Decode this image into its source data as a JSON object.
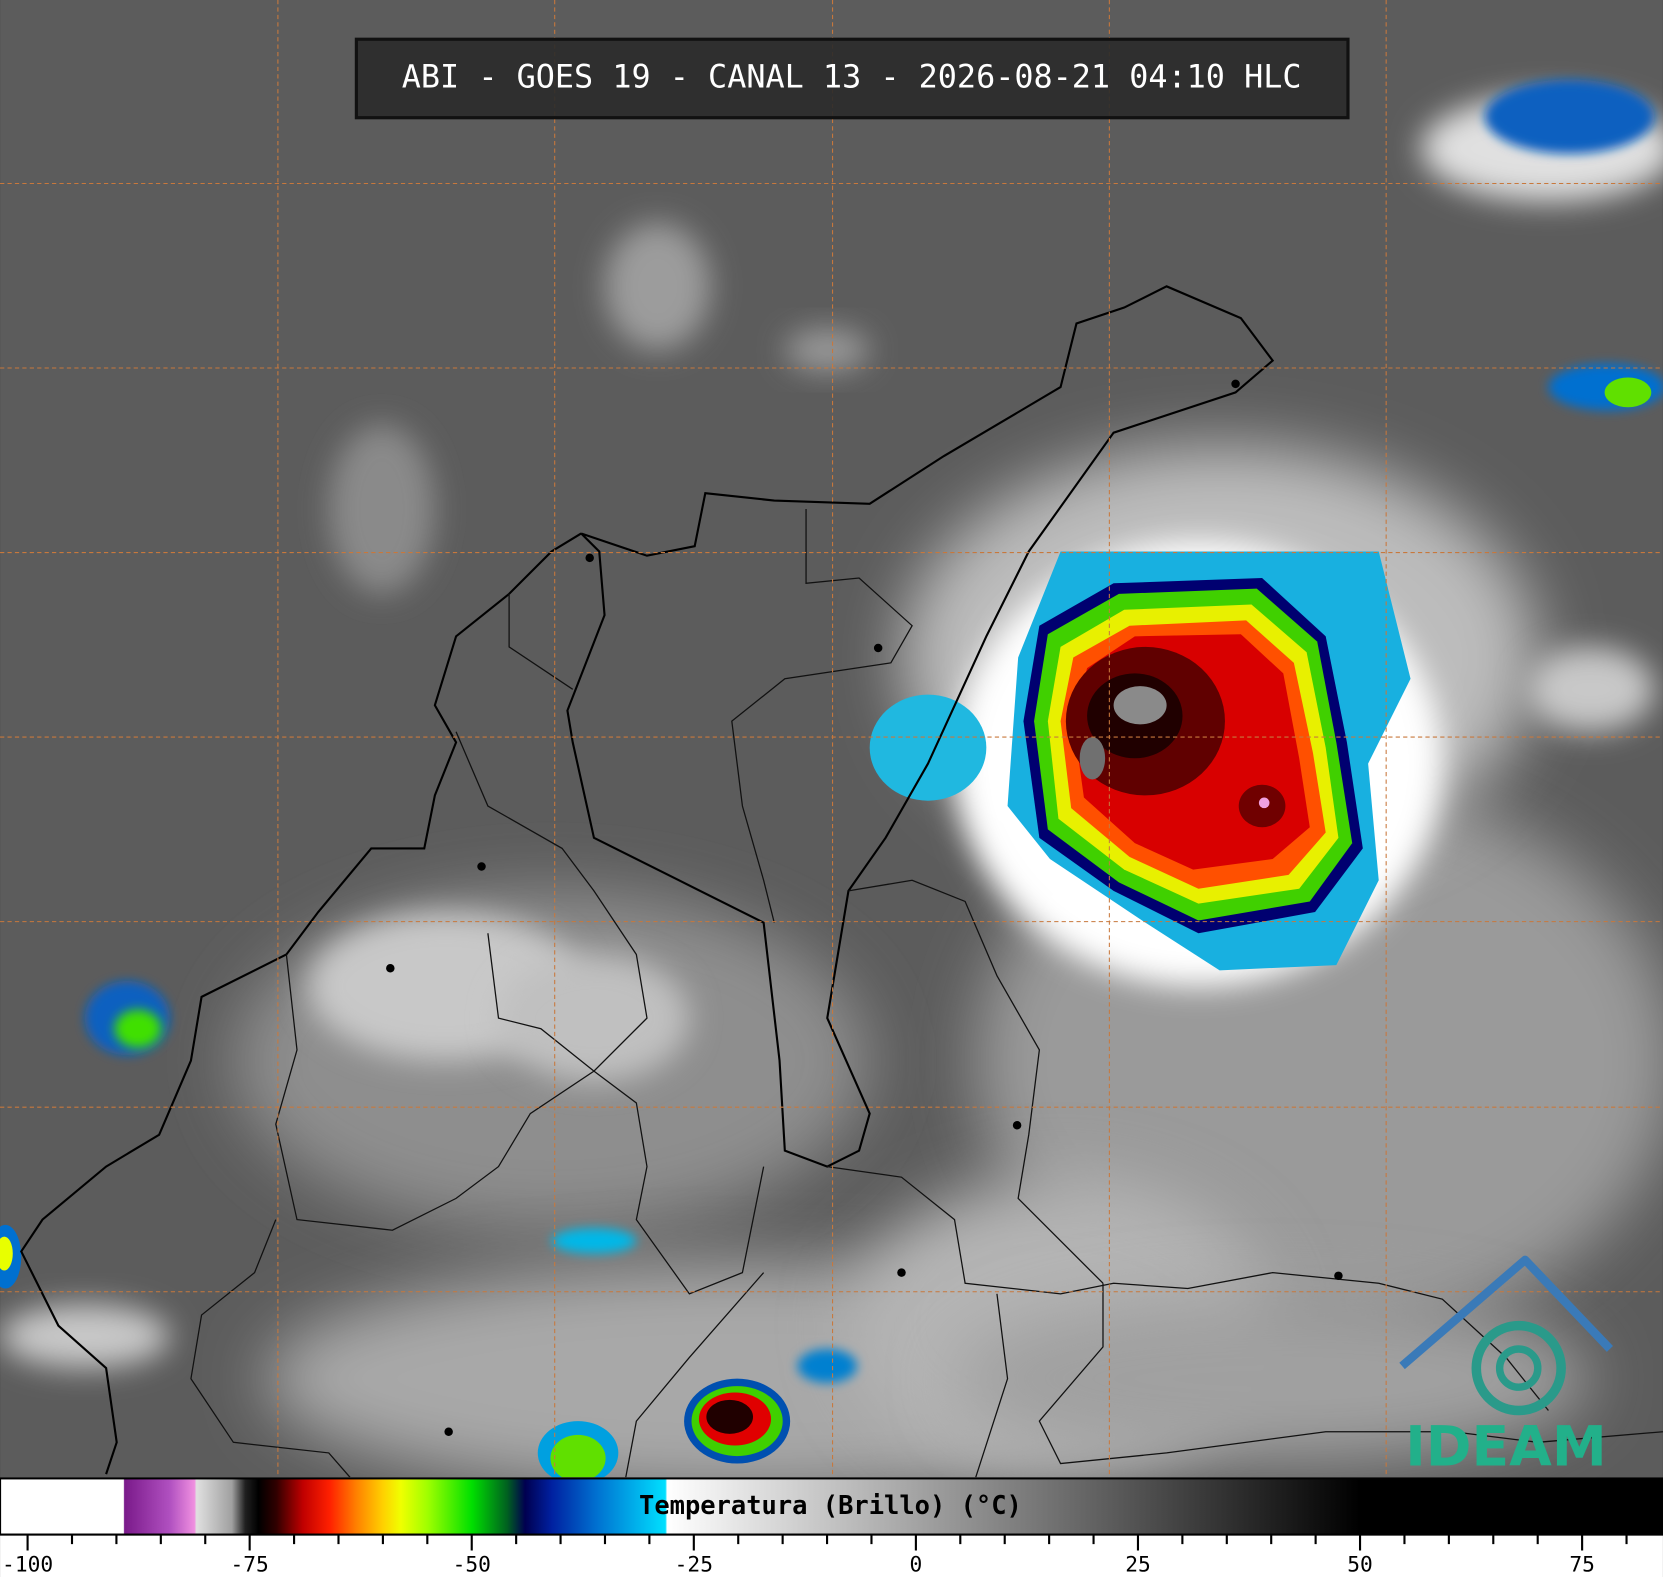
{
  "title": "ABI - GOES 19 - CANAL 13 - 2026-08-21 04:10 HLC",
  "logo": "IDEAM",
  "colorbar": {
    "label": "Temperatura (Brillo) (°C)",
    "xlim": [
      -103.1,
      84.1
    ],
    "ticks": [
      -100,
      -75,
      -50,
      -25,
      0,
      25,
      50,
      75
    ],
    "minor_ticks": [
      -95,
      -90,
      -85,
      -80,
      -70,
      -65,
      -60,
      -55,
      -45,
      -40,
      -35,
      -30,
      -20,
      -15,
      -10,
      -5,
      5,
      10,
      15,
      20,
      30,
      35,
      40,
      45,
      55,
      60,
      65,
      70,
      80
    ],
    "colormap": [
      {
        "value": -103.1,
        "color": "#ffffff"
      },
      {
        "value": -89.2,
        "color": "#ffffff"
      },
      {
        "value": -89.1,
        "color": "#7a1a8a"
      },
      {
        "value": -84,
        "color": "#b050c0"
      },
      {
        "value": -81.2,
        "color": "#f090e0"
      },
      {
        "value": -81,
        "color": "#e0e0e0"
      },
      {
        "value": -77,
        "color": "#a0a0a0"
      },
      {
        "value": -75.5,
        "color": "#202020"
      },
      {
        "value": -74,
        "color": "#000000"
      },
      {
        "value": -72,
        "color": "#300000"
      },
      {
        "value": -69,
        "color": "#c00000"
      },
      {
        "value": -66,
        "color": "#ff2000"
      },
      {
        "value": -63,
        "color": "#ff8000"
      },
      {
        "value": -60,
        "color": "#ffd000"
      },
      {
        "value": -58,
        "color": "#f0ff00"
      },
      {
        "value": -55,
        "color": "#a0ff00"
      },
      {
        "value": -50,
        "color": "#00e000"
      },
      {
        "value": -46,
        "color": "#006020"
      },
      {
        "value": -44,
        "color": "#000050"
      },
      {
        "value": -41,
        "color": "#0020a0"
      },
      {
        "value": -36,
        "color": "#0070d0"
      },
      {
        "value": -28.2,
        "color": "#00e0ff"
      },
      {
        "value": -28,
        "color": "#ffffff"
      },
      {
        "value": 50,
        "color": "#000000"
      },
      {
        "value": 84.1,
        "color": "#000000"
      }
    ]
  }
}
